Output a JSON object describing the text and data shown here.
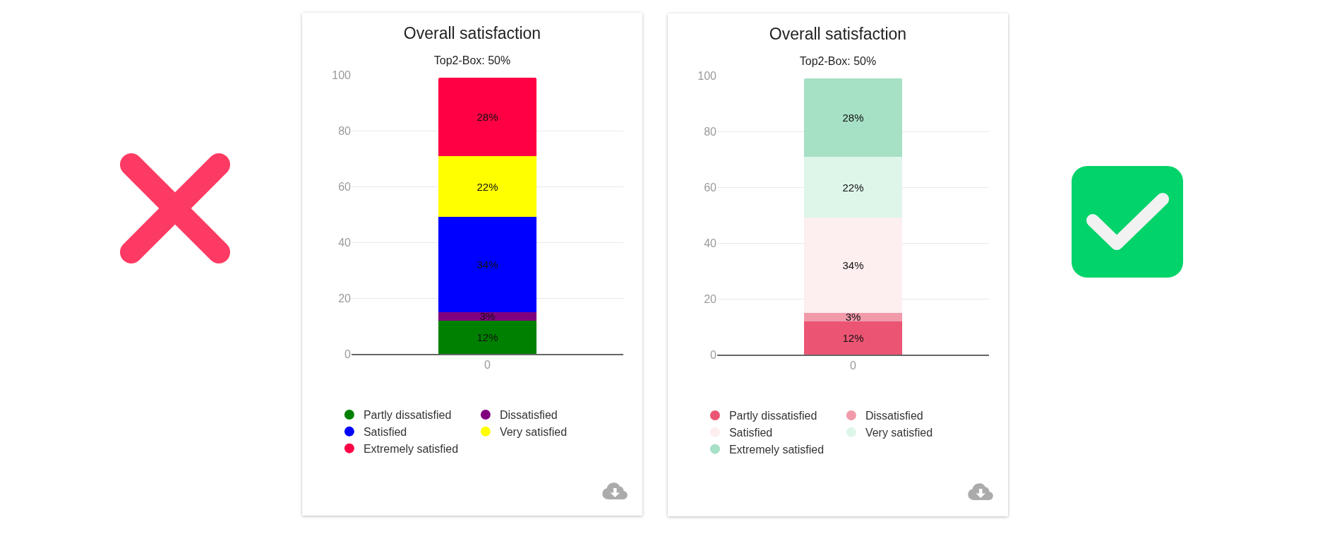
{
  "chart_data": [
    {
      "type": "bar",
      "title": "Overall satisfaction",
      "subtitle": "Top2-Box: 50%",
      "categories": [
        "0"
      ],
      "stacked": true,
      "series": [
        {
          "name": "Partly dissatisfied",
          "color": "#008000",
          "values": [
            12
          ],
          "value_labels": [
            "12%"
          ]
        },
        {
          "name": "Dissatisfied",
          "color": "#800080",
          "values": [
            3
          ],
          "value_labels": [
            "3%"
          ]
        },
        {
          "name": "Satisfied",
          "color": "#0000ff",
          "values": [
            34
          ],
          "value_labels": [
            "34%"
          ]
        },
        {
          "name": "Very satisfied",
          "color": "#ffff00",
          "values": [
            22
          ],
          "value_labels": [
            "22%"
          ]
        },
        {
          "name": "Extremely satisfied",
          "color": "#ff0044",
          "values": [
            28
          ],
          "value_labels": [
            "28%"
          ]
        }
      ],
      "ylim": [
        0,
        100
      ],
      "yticks": [
        0,
        20,
        40,
        60,
        80,
        100
      ],
      "grid": "y",
      "legend": "bottom"
    },
    {
      "type": "bar",
      "title": "Overall satisfaction",
      "subtitle": "Top2-Box: 50%",
      "categories": [
        "0"
      ],
      "stacked": true,
      "series": [
        {
          "name": "Partly dissatisfied",
          "color": "#eb5573",
          "values": [
            12
          ],
          "value_labels": [
            "12%"
          ]
        },
        {
          "name": "Dissatisfied",
          "color": "#f09aaa",
          "values": [
            3
          ],
          "value_labels": [
            "3%"
          ]
        },
        {
          "name": "Satisfied",
          "color": "#fdeef0",
          "values": [
            34
          ],
          "value_labels": [
            "34%"
          ]
        },
        {
          "name": "Very satisfied",
          "color": "#def5ea",
          "values": [
            22
          ],
          "value_labels": [
            "22%"
          ]
        },
        {
          "name": "Extremely satisfied",
          "color": "#a6e0c5",
          "values": [
            28
          ],
          "value_labels": [
            "28%"
          ]
        }
      ],
      "ylim": [
        0,
        100
      ],
      "yticks": [
        0,
        20,
        40,
        60,
        80,
        100
      ],
      "grid": "y",
      "legend": "bottom"
    }
  ]
}
